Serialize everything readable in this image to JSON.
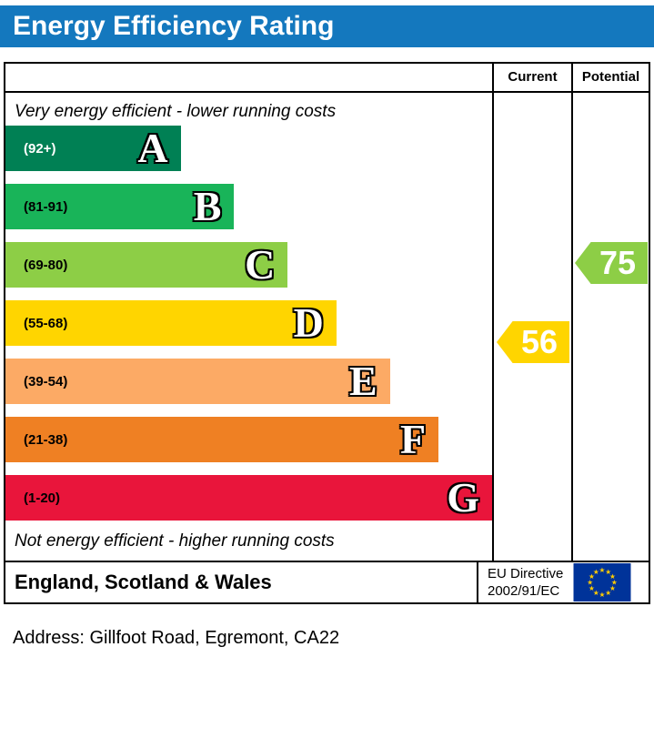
{
  "title": "Energy Efficiency Rating",
  "colors": {
    "title_bar": "#1478be",
    "border": "#000000"
  },
  "table": {
    "current_header": "Current",
    "potential_header": "Potential",
    "top_caption": "Very energy efficient - lower running costs",
    "bottom_caption": "Not energy efficient - higher running costs"
  },
  "chart_data": {
    "type": "bar",
    "title": "Energy Efficiency Rating",
    "legend_position": "none",
    "grid": false,
    "bands": [
      {
        "letter": "A",
        "range_label": "(92+)",
        "score_range": [
          92,
          100
        ],
        "color": "#008054",
        "label_color": "#ffffff",
        "width_pct": 36
      },
      {
        "letter": "B",
        "range_label": "(81-91)",
        "score_range": [
          81,
          91
        ],
        "color": "#19b459",
        "label_color": "#000000",
        "width_pct": 47
      },
      {
        "letter": "C",
        "range_label": "(69-80)",
        "score_range": [
          69,
          80
        ],
        "color": "#8dce46",
        "label_color": "#000000",
        "width_pct": 58
      },
      {
        "letter": "D",
        "range_label": "(55-68)",
        "score_range": [
          55,
          68
        ],
        "color": "#ffd500",
        "label_color": "#000000",
        "width_pct": 68
      },
      {
        "letter": "E",
        "range_label": "(39-54)",
        "score_range": [
          39,
          54
        ],
        "color": "#fcaa65",
        "label_color": "#000000",
        "width_pct": 79
      },
      {
        "letter": "F",
        "range_label": "(21-38)",
        "score_range": [
          21,
          38
        ],
        "color": "#ef8023",
        "label_color": "#000000",
        "width_pct": 89
      },
      {
        "letter": "G",
        "range_label": "(1-20)",
        "score_range": [
          1,
          20
        ],
        "color": "#e9153b",
        "label_color": "#000000",
        "width_pct": 100
      }
    ],
    "current": {
      "label": "Current",
      "value": 56,
      "band": "D",
      "band_index": 3,
      "color": "#ffd500"
    },
    "potential": {
      "label": "Potential",
      "value": 75,
      "band": "C",
      "band_index": 2,
      "color": "#8dce46"
    }
  },
  "footer": {
    "region_label": "England, Scotland & Wales",
    "directive_line1": "EU Directive",
    "directive_line2": "2002/91/EC",
    "flag_icon": "eu-flag-icon",
    "flag_colors": {
      "background": "#003399",
      "stars": "#ffcc00"
    }
  },
  "address_line": "Address: Gillfoot Road, Egremont, CA22"
}
